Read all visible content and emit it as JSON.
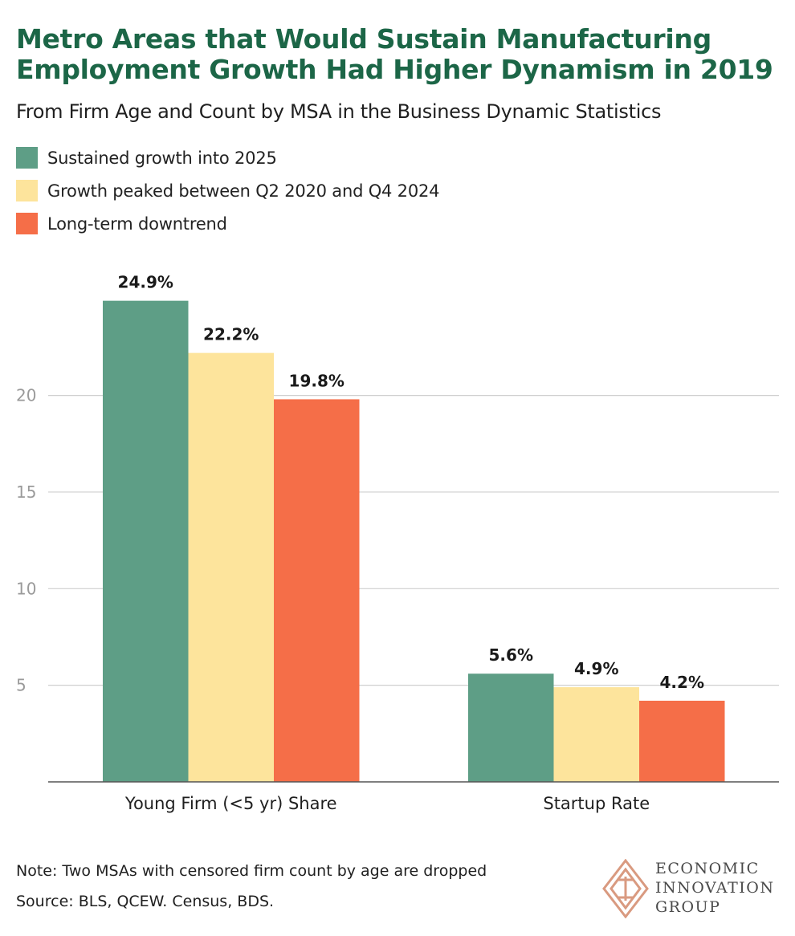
{
  "header": {
    "title": "Metro Areas that Would Sustain Manufacturing Employment Growth Had Higher Dynamism in 2019",
    "subtitle": "From Firm Age and Count by MSA in the Business Dynamic Statistics"
  },
  "legend": [
    {
      "label": "Sustained growth into 2025",
      "color": "#5e9e86"
    },
    {
      "label": "Growth peaked between Q2 2020 and Q4 2024",
      "color": "#fde49c"
    },
    {
      "label": "Long-term downtrend",
      "color": "#f56e48"
    }
  ],
  "chart_data": {
    "type": "bar",
    "title": "Metro Areas that Would Sustain Manufacturing Employment Growth Had Higher Dynamism in 2019",
    "categories": [
      "Young Firm (<5 yr) Share",
      "Startup Rate"
    ],
    "series": [
      {
        "name": "Sustained growth into 2025",
        "values": [
          24.9,
          5.6
        ],
        "labels": [
          "24.9%",
          "5.6%"
        ],
        "color": "#5e9e86"
      },
      {
        "name": "Growth peaked between Q2 2020 and Q4 2024",
        "values": [
          22.2,
          4.9
        ],
        "labels": [
          "22.2%",
          "4.9%"
        ],
        "color": "#fde49c"
      },
      {
        "name": "Long-term downtrend",
        "values": [
          19.8,
          4.2
        ],
        "labels": [
          "19.8%",
          "4.2%"
        ],
        "color": "#f56e48"
      }
    ],
    "yticks": [
      5,
      10,
      15,
      20
    ],
    "ylim": [
      0,
      27
    ],
    "xlabel": "",
    "ylabel": "",
    "grid": true
  },
  "footer": {
    "note": "Note: Two MSAs with censored firm count by age are dropped",
    "source": "Source: BLS, QCEW. Census, BDS."
  },
  "logo": {
    "line1": "ECONOMIC",
    "line2": "INNOVATION",
    "line3": "GROUP",
    "color": "#d99a80"
  }
}
